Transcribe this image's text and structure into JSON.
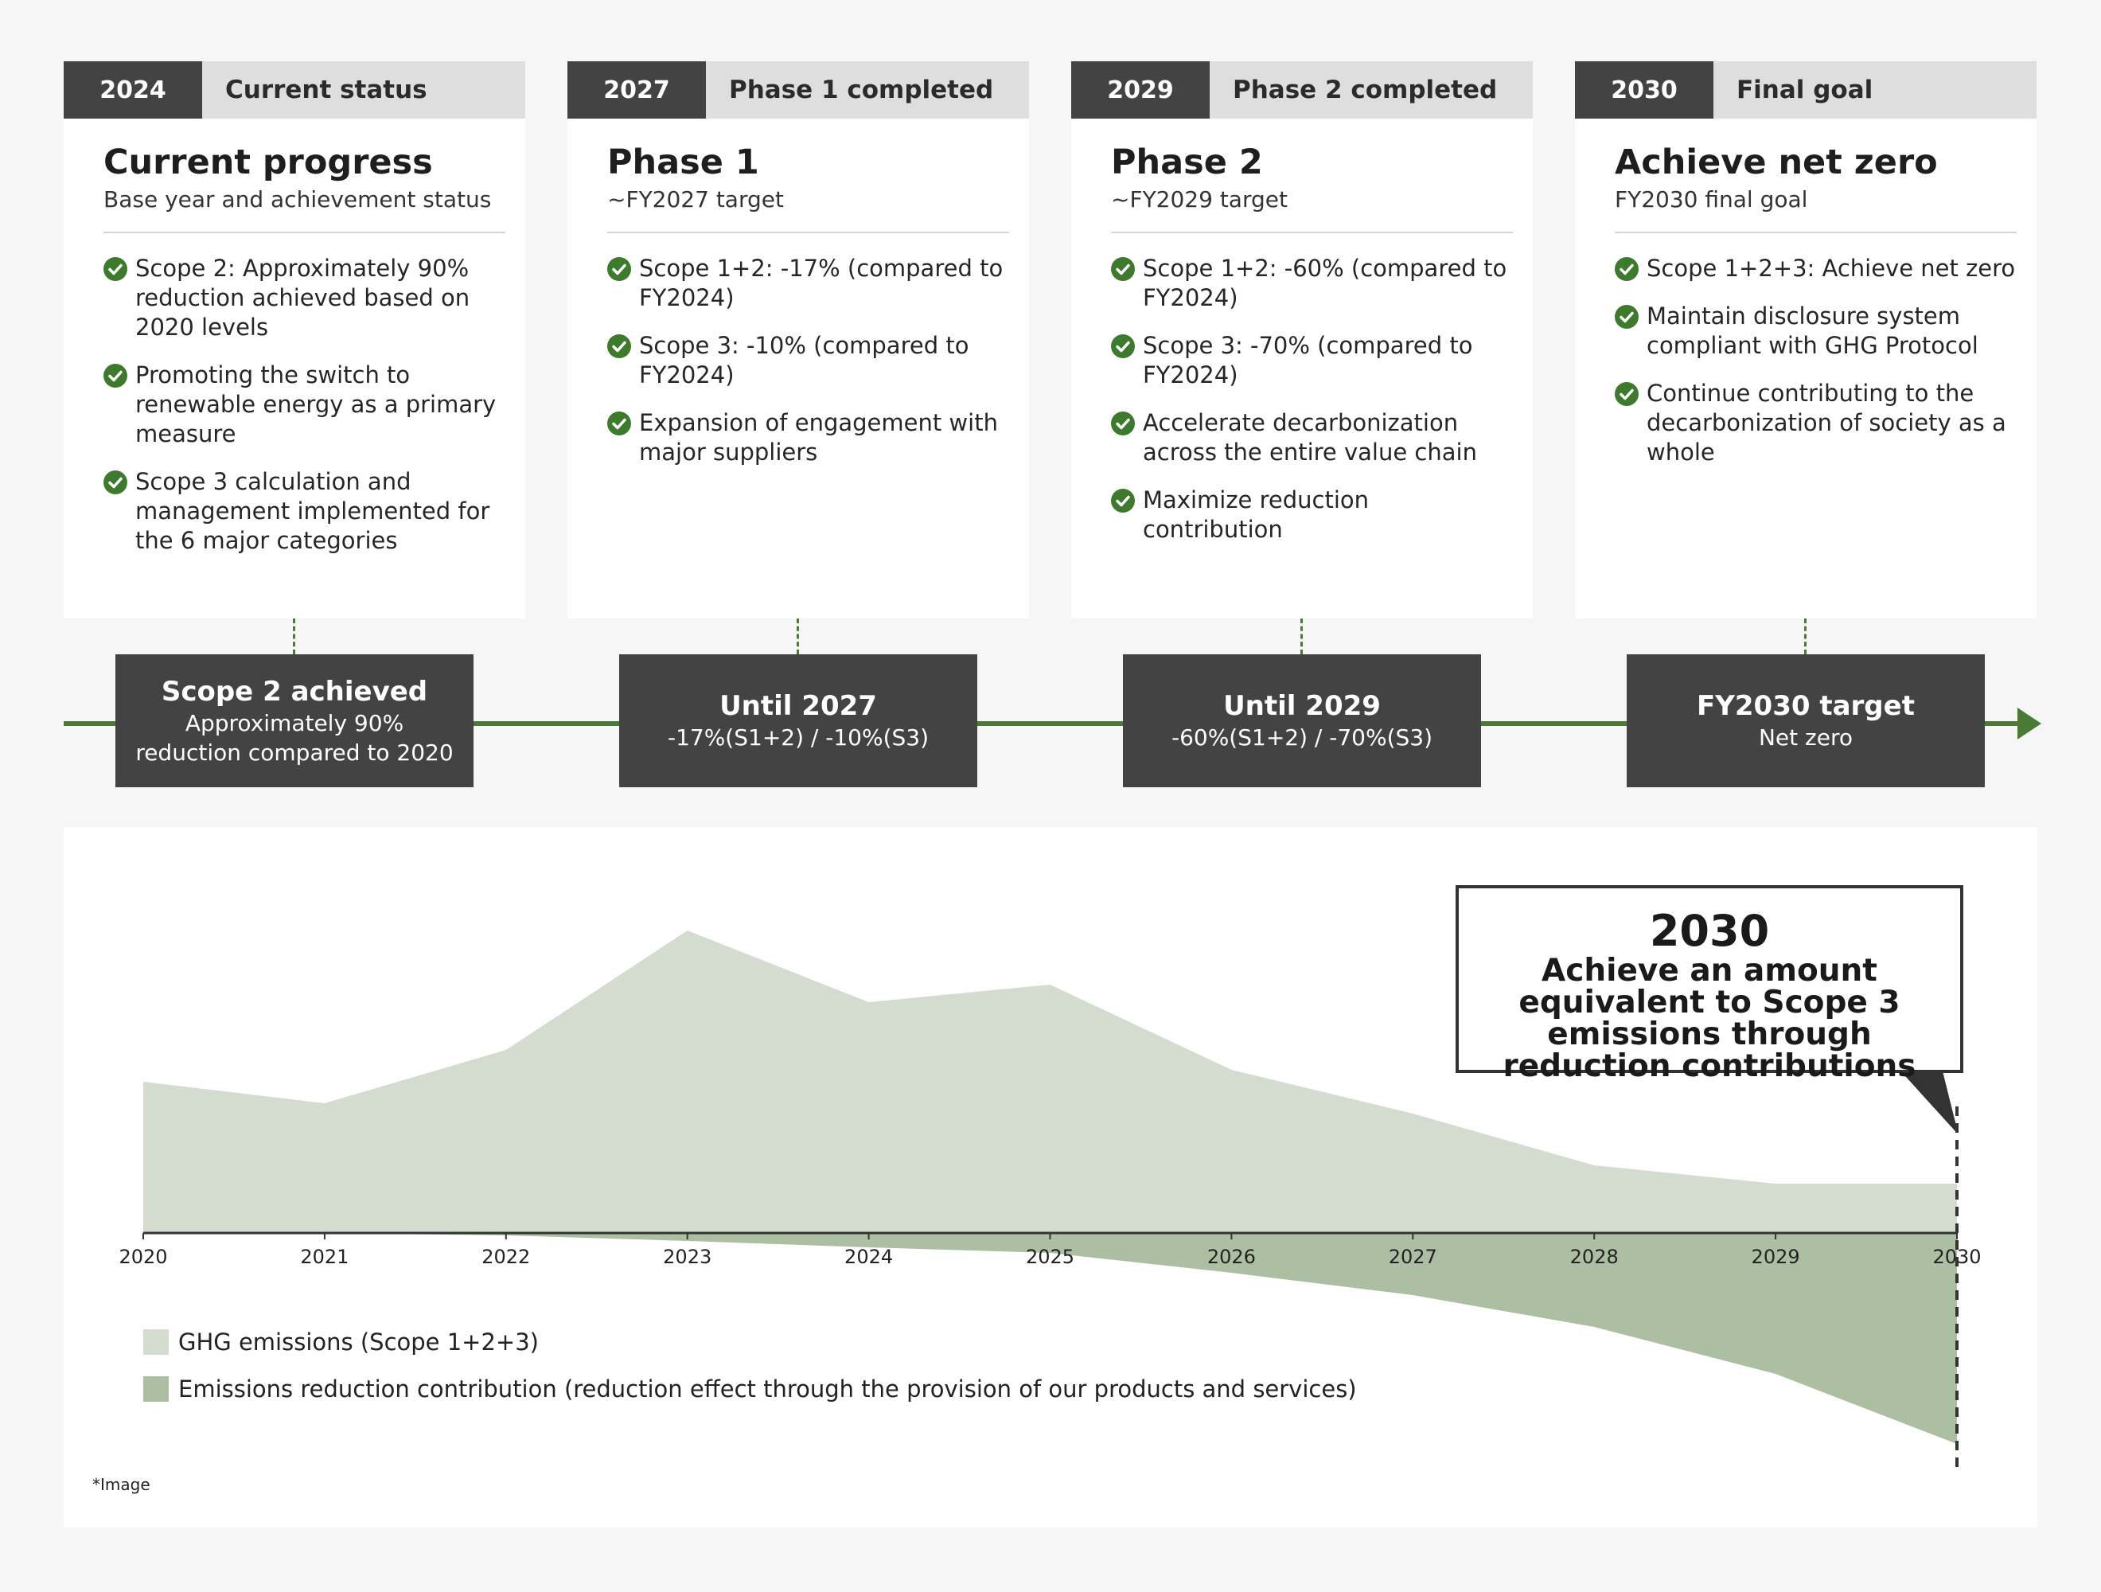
{
  "phases": [
    {
      "year": "2024",
      "status": "Current status",
      "title": "Current progress",
      "subtitle": "Base year and achievement status",
      "bullets": [
        "Scope 2: Approximately 90% reduction achieved based on 2020 levels",
        "Promoting the switch to renewable energy as a primary measure",
        "Scope 3 calculation and management implemented for the 6 major categories"
      ],
      "milestone_title": "Scope 2 achieved",
      "milestone_sub": "Approximately 90% reduction compared to 2020"
    },
    {
      "year": "2027",
      "status": "Phase 1 completed",
      "title": "Phase 1",
      "subtitle": "~FY2027 target",
      "bullets": [
        "Scope 1+2: -17% (compared to FY2024)",
        "Scope 3: -10% (compared to FY2024)",
        "Expansion of engagement with major suppliers"
      ],
      "milestone_title": "Until 2027",
      "milestone_sub": "-17%(S1+2) / -10%(S3)"
    },
    {
      "year": "2029",
      "status": "Phase 2 completed",
      "title": "Phase 2",
      "subtitle": "~FY2029 target",
      "bullets": [
        "Scope 1+2: -60% (compared to FY2024)",
        "Scope 3: -70% (compared to FY2024)",
        "Accelerate decarbonization across the entire value chain",
        "Maximize reduction contribution"
      ],
      "milestone_title": "Until 2029",
      "milestone_sub": "-60%(S1+2) / -70%(S3)"
    },
    {
      "year": "2030",
      "status": "Final goal",
      "title": "Achieve net zero",
      "subtitle": "FY2030 final goal",
      "bullets": [
        "Scope 1+2+3: Achieve net zero",
        "Maintain disclosure system compliant with GHG Protocol",
        "Continue contributing to the decarbonization of society as a whole"
      ],
      "milestone_title": "FY2030 target",
      "milestone_sub": "Net zero"
    }
  ],
  "callout": {
    "year": "2030",
    "text": "Achieve an amount equivalent to Scope 3 emissions through reduction contributions"
  },
  "note": "*Image",
  "colors": {
    "accent_green": "#4b7a34",
    "dark_box": "#434343",
    "ghg_area": "#d3dccf",
    "reduction_area": "#adbfa2"
  },
  "chart_data": {
    "type": "area",
    "x": [
      "2020",
      "2021",
      "2022",
      "2023",
      "2024",
      "2025",
      "2026",
      "2027",
      "2028",
      "2029",
      "2030"
    ],
    "series": [
      {
        "name": "GHG emissions (Scope 1+2+3)",
        "values": [
          190,
          163,
          230,
          380,
          290,
          312,
          205,
          150,
          85,
          62,
          62
        ]
      },
      {
        "name": "Emissions reduction contribution (reduction effect through the provision of our products and services)",
        "values": [
          0,
          0,
          -3,
          -10,
          -18,
          -25,
          -50,
          -78,
          -118,
          -177,
          -265
        ]
      }
    ],
    "ylim": [
      -270,
      380
    ],
    "grid": false,
    "legend": "bottom-left",
    "annotations": [
      "2030 dashed marker"
    ]
  }
}
